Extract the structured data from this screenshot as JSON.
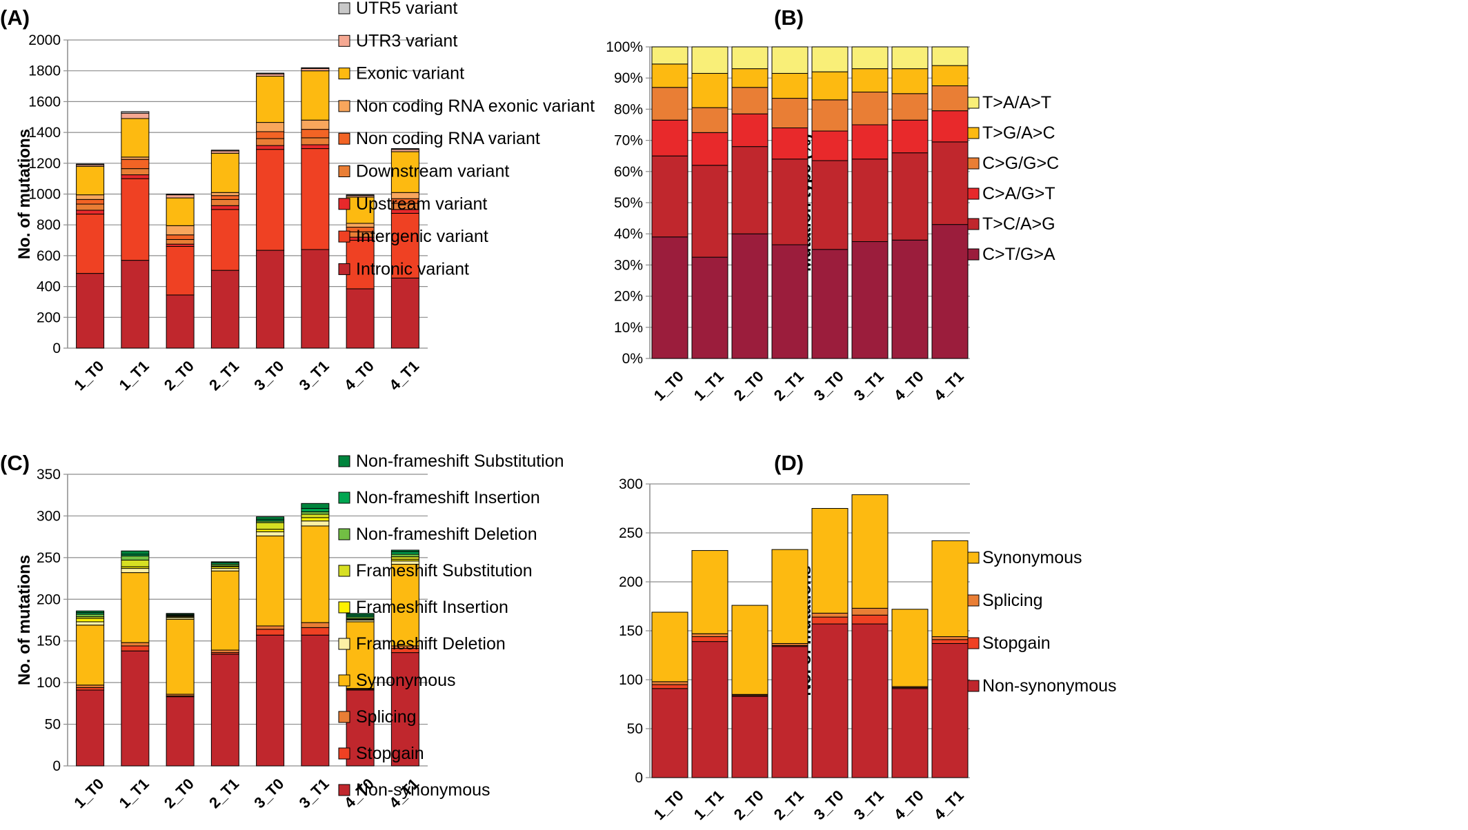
{
  "figure": {
    "panel_labels": [
      "(A)",
      "(B)",
      "(C)",
      "(D)"
    ]
  },
  "chart_data": [
    {
      "panel": "(A)",
      "type": "bar",
      "stacked": true,
      "ylabel": "No. of mutations",
      "ylim": [
        0,
        2000
      ],
      "yticks": [
        "0",
        "200",
        "400",
        "600",
        "800",
        "1000",
        "1200",
        "1400",
        "1600",
        "1800",
        "2000"
      ],
      "grid": true,
      "legend_position": "right",
      "categories": [
        "1_T0",
        "1_T1",
        "2_T0",
        "2_T1",
        "3_T0",
        "3_T1",
        "4_T0",
        "4_T1"
      ],
      "series": [
        {
          "name": "Intronic variant",
          "color": "#c0272d",
          "values": [
            485,
            570,
            345,
            505,
            635,
            640,
            385,
            455
          ]
        },
        {
          "name": "Intergenic variant",
          "color": "#ef4123",
          "values": [
            385,
            530,
            315,
            395,
            655,
            655,
            315,
            420
          ]
        },
        {
          "name": "Upstream variant",
          "color": "#e8292b",
          "values": [
            25,
            25,
            15,
            25,
            25,
            25,
            20,
            25
          ]
        },
        {
          "name": "Downstream variant",
          "color": "#e97e35",
          "values": [
            40,
            40,
            30,
            40,
            45,
            45,
            35,
            40
          ]
        },
        {
          "name": "Non coding RNA variant",
          "color": "#f26425",
          "values": [
            30,
            60,
            30,
            25,
            45,
            55,
            30,
            30
          ]
        },
        {
          "name": "Non coding RNA exonic variant",
          "color": "#f8a65c",
          "values": [
            30,
            15,
            60,
            20,
            60,
            60,
            25,
            40
          ]
        },
        {
          "name": "Exonic variant",
          "color": "#fdba11",
          "values": [
            185,
            250,
            180,
            255,
            300,
            320,
            170,
            265
          ]
        },
        {
          "name": "UTR3 variant",
          "color": "#f5a892",
          "values": [
            10,
            35,
            20,
            15,
            15,
            15,
            10,
            15
          ]
        },
        {
          "name": "UTR5 variant",
          "color": "#c8c8c8",
          "values": [
            5,
            10,
            5,
            5,
            5,
            5,
            5,
            5
          ]
        }
      ]
    },
    {
      "panel": "(B)",
      "type": "bar",
      "stacked": true,
      "ylabel": "Mutation type (%)",
      "ylim": [
        0,
        100
      ],
      "yticks": [
        "0%",
        "10%",
        "20%",
        "30%",
        "40%",
        "50%",
        "60%",
        "70%",
        "80%",
        "90%",
        "100%"
      ],
      "grid": true,
      "legend_position": "right",
      "categories": [
        "1_T0",
        "1_T1",
        "2_T0",
        "2_T1",
        "3_T0",
        "3_T1",
        "4_T0",
        "4_T1"
      ],
      "series": [
        {
          "name": "C>T/G>A",
          "color": "#9b1d3c",
          "values": [
            39,
            32.5,
            40,
            36.5,
            35,
            37.5,
            38,
            43
          ]
        },
        {
          "name": "T>C/A>G",
          "color": "#c0272d",
          "values": [
            26,
            29.5,
            28,
            27.5,
            28.5,
            26.5,
            28,
            26.5
          ]
        },
        {
          "name": "C>A/G>T",
          "color": "#e8292b",
          "values": [
            11.5,
            10.5,
            10.5,
            10,
            9.5,
            11,
            10.5,
            10
          ]
        },
        {
          "name": "C>G/G>C",
          "color": "#e97e35",
          "values": [
            10.5,
            8,
            8.5,
            9.5,
            10,
            10.5,
            8.5,
            8
          ]
        },
        {
          "name": "T>G/A>C",
          "color": "#fdba11",
          "values": [
            7.5,
            11,
            6,
            8,
            9,
            7.5,
            8,
            6.5
          ]
        },
        {
          "name": "T>A/A>T",
          "color": "#f9ef78",
          "values": [
            5.5,
            8.5,
            7,
            8.5,
            8,
            7,
            7,
            6
          ]
        }
      ]
    },
    {
      "panel": "(C)",
      "type": "bar",
      "stacked": true,
      "ylabel": "No. of mutations",
      "ylim": [
        0,
        350
      ],
      "yticks": [
        "0",
        "50",
        "100",
        "150",
        "200",
        "250",
        "300",
        "350"
      ],
      "grid": true,
      "legend_position": "right",
      "categories": [
        "1_T0",
        "1_T1",
        "2_T0",
        "2_T1",
        "3_T0",
        "3_T1",
        "4_T0",
        "4_T1"
      ],
      "series": [
        {
          "name": "Non-synonymous",
          "color": "#c0272d",
          "values": [
            91,
            138,
            83,
            134,
            157,
            157,
            91,
            136
          ]
        },
        {
          "name": "Stopgain",
          "color": "#ef4123",
          "values": [
            3,
            6,
            1,
            2,
            7,
            9,
            1,
            5
          ]
        },
        {
          "name": "Splicing",
          "color": "#e97e35",
          "values": [
            3,
            4,
            2,
            3,
            4,
            6,
            1,
            3
          ]
        },
        {
          "name": "Synonymous",
          "color": "#fdba11",
          "values": [
            72,
            84,
            90,
            95,
            108,
            116,
            80,
            98
          ]
        },
        {
          "name": "Frameshift Deletion",
          "color": "#fcf1a5",
          "values": [
            4,
            5,
            2,
            3,
            5,
            6,
            2,
            4
          ]
        },
        {
          "name": "Frameshift Insertion",
          "color": "#fff200",
          "values": [
            4,
            2,
            1,
            2,
            3,
            4,
            1,
            2
          ]
        },
        {
          "name": "Frameshift Substitution",
          "color": "#d7df23",
          "values": [
            2,
            8,
            1,
            1,
            8,
            4,
            1,
            3
          ]
        },
        {
          "name": "Non-frameshift Deletion",
          "color": "#72bf44",
          "values": [
            3,
            5,
            1,
            2,
            2,
            3,
            2,
            3
          ]
        },
        {
          "name": "Non-frameshift Insertion",
          "color": "#00a651",
          "values": [
            2,
            2,
            1,
            2,
            2,
            4,
            2,
            3
          ]
        },
        {
          "name": "Non-frameshift Substitution",
          "color": "#00843d",
          "values": [
            2,
            4,
            1,
            1,
            3,
            6,
            2,
            2
          ]
        }
      ]
    },
    {
      "panel": "(D)",
      "type": "bar",
      "stacked": true,
      "ylabel": "No. of mutations",
      "ylim": [
        0,
        300
      ],
      "yticks": [
        "0",
        "50",
        "100",
        "150",
        "200",
        "250",
        "300"
      ],
      "grid": true,
      "legend_position": "right",
      "categories": [
        "1_T0",
        "1_T1",
        "2_T0",
        "2_T1",
        "3_T0",
        "3_T1",
        "4_T0",
        "4_T1"
      ],
      "series": [
        {
          "name": "Non-synonymous",
          "color": "#c0272d",
          "values": [
            91,
            139,
            83,
            134,
            157,
            157,
            91,
            137
          ]
        },
        {
          "name": "Stopgain",
          "color": "#ef4123",
          "values": [
            4,
            5,
            1,
            1,
            7,
            9,
            1,
            4
          ]
        },
        {
          "name": "Splicing",
          "color": "#e97e35",
          "values": [
            3,
            3,
            1,
            2,
            4,
            7,
            1,
            3
          ]
        },
        {
          "name": "Synonymous",
          "color": "#fdba11",
          "values": [
            71,
            85,
            91,
            96,
            107,
            116,
            79,
            98
          ]
        }
      ]
    }
  ]
}
